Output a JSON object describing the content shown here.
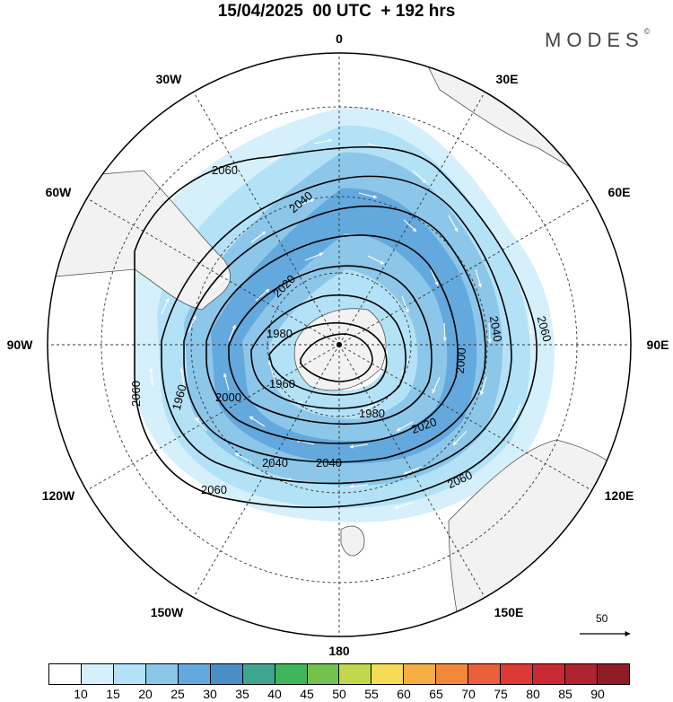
{
  "header": {
    "title": "15/04/2025  00 UTC  + 192 hrs",
    "brand": "MODES",
    "brand_mark": "©"
  },
  "map": {
    "projection": "polar-stereographic-south",
    "longitude_labels": {
      "top": "0",
      "top_right": "30E",
      "right_upper": "60E",
      "right": "90E",
      "right_lower": "120E",
      "bottom_right": "150E",
      "bottom": "180",
      "bottom_left": "150W",
      "left_lower": "120W",
      "left": "90W",
      "left_upper": "60W",
      "top_left": "30W"
    },
    "contour_labels": [
      "2060",
      "2040",
      "2020",
      "2000",
      "1980",
      "1960",
      "1980",
      "2000",
      "2020",
      "2040",
      "2060",
      "2060",
      "2040",
      "2020",
      "2000",
      "1980",
      "1960",
      "2040",
      "2060",
      "2060"
    ],
    "land_color": "#f2f2f2",
    "contour_color": "#000000",
    "wind_arrow_color": "#ffffff"
  },
  "reference_vector": {
    "value": "50"
  },
  "colorbar": {
    "ticks": [
      "10",
      "15",
      "20",
      "25",
      "30",
      "35",
      "40",
      "45",
      "50",
      "55",
      "60",
      "65",
      "70",
      "75",
      "80",
      "85",
      "90"
    ],
    "colors": [
      "#ffffff",
      "#d5f0fb",
      "#b3e2f7",
      "#8cc7ea",
      "#64a9dd",
      "#4a8ec8",
      "#3fa58f",
      "#3fb45a",
      "#72c24b",
      "#c0d94a",
      "#f4dc55",
      "#f5ad45",
      "#f0893b",
      "#e9603a",
      "#dc3a35",
      "#c72a32",
      "#ae2430",
      "#8e1d26"
    ]
  }
}
